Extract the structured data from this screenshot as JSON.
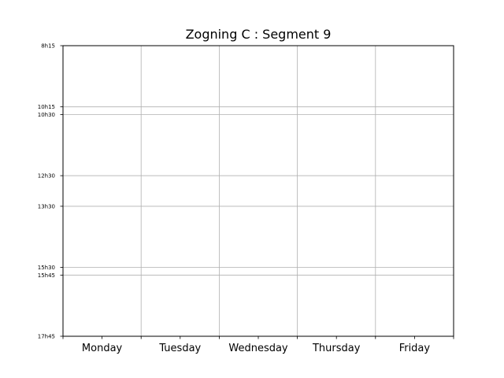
{
  "chart_data": {
    "type": "table",
    "title": "Zogning C : Segment 9",
    "xlabel": "",
    "ylabel": "",
    "categories": [
      "Monday",
      "Tuesday",
      "Wednesday",
      "Thursday",
      "Friday"
    ],
    "time_ticks": [
      "8h15",
      "10h15",
      "10h30",
      "12h30",
      "13h30",
      "15h30",
      "15h45",
      "17h45"
    ],
    "time_range": [
      "8h15",
      "17h45"
    ],
    "entries": [],
    "grid": true,
    "legend": "none"
  }
}
